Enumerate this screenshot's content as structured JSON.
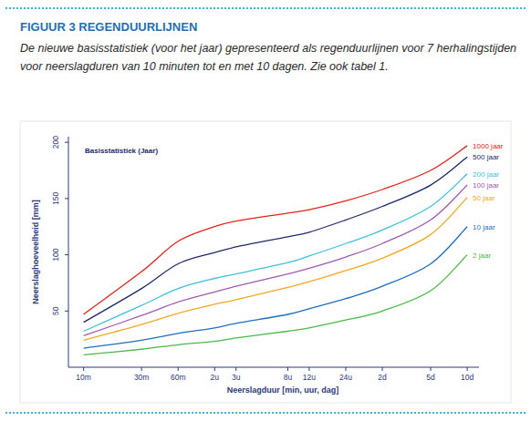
{
  "chart_data": {
    "type": "line",
    "title": "FIGUUR 3 REGENDUURLIJNEN",
    "subtitle": "De nieuwe basisstatistiek (voor het jaar) gepresenteerd als regenduurlijnen voor 7 herhalingstijden voor neerslagduren van 10 minuten tot en met 10 dagen. Zie ook tabel 1.",
    "annotation": "Basisstatistiek (Jaar)",
    "x_label": "Neerslagduur [min, uur, dag]",
    "y_label": "Neerslaghoeveelheid [mm]",
    "x": [
      10,
      30,
      60,
      120,
      180,
      480,
      720,
      1440,
      2880,
      7200,
      14400
    ],
    "xlim": [
      7.5,
      18000
    ],
    "xticks": [
      {
        "value": 10,
        "label": "10m"
      },
      {
        "value": 30,
        "label": "30m"
      },
      {
        "value": 60,
        "label": "60m"
      },
      {
        "value": 120,
        "label": "2u"
      },
      {
        "value": 180,
        "label": "3u"
      },
      {
        "value": 480,
        "label": "8u"
      },
      {
        "value": 720,
        "label": "12u"
      },
      {
        "value": 1440,
        "label": "24u"
      },
      {
        "value": 2880,
        "label": "2d"
      },
      {
        "value": 7200,
        "label": "5d"
      },
      {
        "value": 14400,
        "label": "10d"
      }
    ],
    "ylim": [
      0,
      205
    ],
    "yticks": [
      50,
      100,
      150,
      200
    ],
    "log": "x",
    "grid": false,
    "series": [
      {
        "name": "1000 jaar",
        "color": "#e2231a",
        "values": [
          47,
          85,
          112,
          125,
          130,
          137,
          140,
          148,
          158,
          175,
          197
        ]
      },
      {
        "name": "500 jaar",
        "color": "#1f2a6b",
        "values": [
          40,
          70,
          92,
          102,
          107,
          116,
          120,
          131,
          143,
          162,
          187
        ]
      },
      {
        "name": "200 jaar",
        "color": "#3fc0e0",
        "values": [
          32,
          55,
          70,
          79,
          83,
          93,
          99,
          110,
          122,
          143,
          172
        ]
      },
      {
        "name": "100 jaar",
        "color": "#a05ab0",
        "values": [
          28,
          46,
          58,
          67,
          72,
          83,
          88,
          98,
          110,
          131,
          162
        ]
      },
      {
        "name": "50 jaar",
        "color": "#f5a623",
        "values": [
          24,
          38,
          48,
          56,
          60,
          71,
          76,
          86,
          97,
          118,
          151
        ]
      },
      {
        "name": "10 jaar",
        "color": "#1f6fbf",
        "values": [
          17,
          24,
          30,
          35,
          39,
          47,
          52,
          61,
          72,
          92,
          125
        ]
      },
      {
        "name": "2 jaar",
        "color": "#4cb848",
        "values": [
          11,
          16,
          20,
          23,
          26,
          32,
          35,
          42,
          50,
          68,
          100
        ]
      }
    ]
  }
}
